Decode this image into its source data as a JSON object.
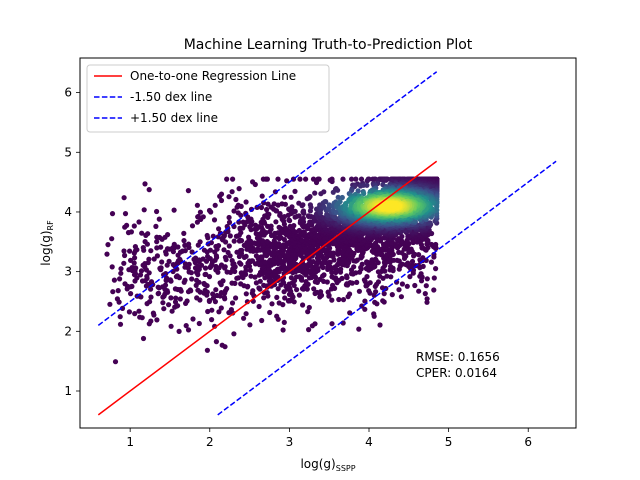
{
  "chart_data": {
    "type": "scatter",
    "title": "Machine Learning Truth-to-Prediction Plot",
    "xlabel": "log(g)",
    "xlabel_sub": "SSPP",
    "ylabel": "log(g)",
    "ylabel_sub": "RF",
    "xlim": [
      0.37,
      6.6
    ],
    "ylim": [
      0.38,
      6.58
    ],
    "xticks": [
      1,
      2,
      3,
      4,
      5,
      6
    ],
    "yticks": [
      1,
      2,
      3,
      4,
      5,
      6
    ],
    "grid": false,
    "legend_position": "top-left",
    "colors": {
      "one_to_one": "#ff0000",
      "dex": "#0000ff",
      "density_low": "#440154",
      "density_mid1": "#3b528b",
      "density_mid2": "#21918c",
      "density_mid3": "#5ec962",
      "density_high": "#fde725"
    },
    "lines": [
      {
        "name": "One-to-one Regression Line",
        "style": "solid",
        "color": "#ff0000",
        "x": [
          0.6,
          4.85
        ],
        "y": [
          0.6,
          4.85
        ]
      },
      {
        "name": "-1.50 dex line",
        "style": "dashed",
        "color": "#0000ff",
        "x": [
          0.6,
          4.85
        ],
        "y": [
          2.1,
          6.35
        ]
      },
      {
        "name": "+1.50 dex line",
        "style": "dashed",
        "color": "#0000ff",
        "x": [
          2.1,
          6.35
        ],
        "y": [
          0.6,
          4.85
        ]
      }
    ],
    "density": {
      "x_range": [
        0.6,
        4.85
      ],
      "y_range": [
        1.45,
        4.55
      ],
      "peak": [
        4.25,
        4.1
      ]
    },
    "annotations": [
      "RMSE: 0.1656",
      "CPER: 0.0164"
    ]
  }
}
